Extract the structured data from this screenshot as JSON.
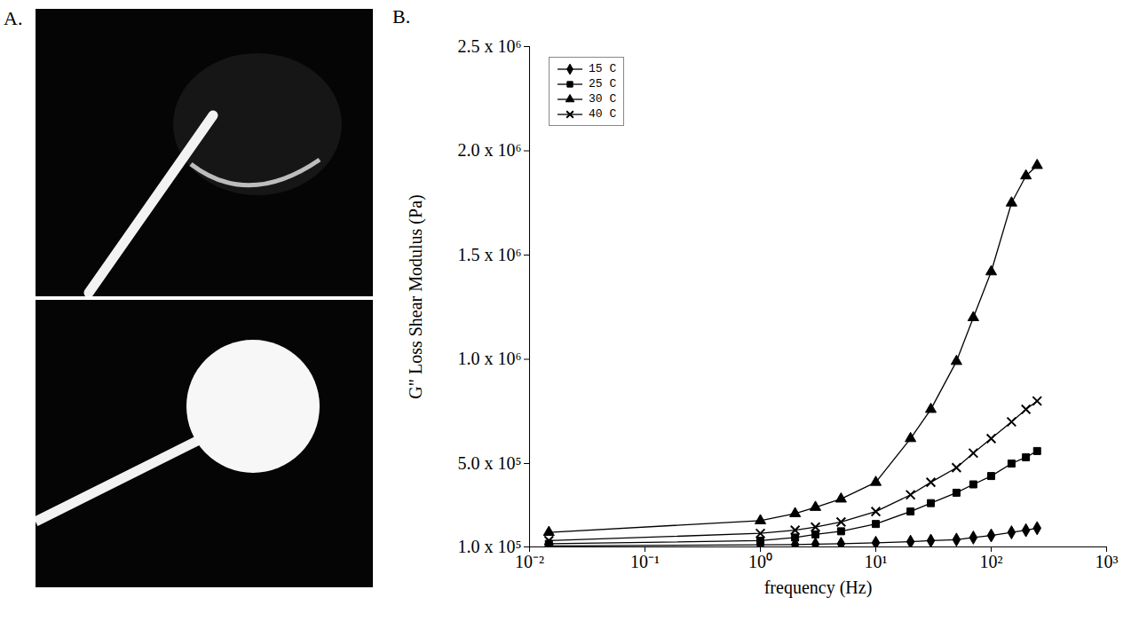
{
  "panel_labels": [
    "A.",
    "B."
  ],
  "chart_data": {
    "type": "line",
    "x_label": "frequency (Hz)",
    "y_label": "G\" Loss Shear Modulus (Pa)",
    "log": "x",
    "grid": false,
    "legend": "top-left",
    "xlim": [
      0.01,
      1000
    ],
    "xticks": [
      {
        "value": 0.01,
        "label": "10⁻²"
      },
      {
        "value": 0.1,
        "label": "10⁻¹"
      },
      {
        "value": 1,
        "label": "10⁰"
      },
      {
        "value": 10,
        "label": "10¹"
      },
      {
        "value": 100,
        "label": "10²"
      },
      {
        "value": 1000,
        "label": "10³"
      }
    ],
    "ylim": [
      100000,
      2500000
    ],
    "yticks": [
      {
        "value": 100000,
        "label": "1.0 x 10⁵"
      },
      {
        "value": 500000,
        "label": "5.0 x 10⁵"
      },
      {
        "value": 1000000,
        "label": "1.0 x 10⁶"
      },
      {
        "value": 1500000,
        "label": "1.5 x 10⁶"
      },
      {
        "value": 2000000,
        "label": "2.0 x 10⁶"
      },
      {
        "value": 2500000,
        "label": "2.5 x 10⁶"
      }
    ],
    "x": [
      0.0147,
      1,
      2,
      3,
      5,
      10,
      20,
      30,
      50,
      70,
      100,
      150,
      200,
      250
    ],
    "series": [
      {
        "name": "15 C",
        "color": "#000000",
        "marker": "diamond",
        "line_style": "solid",
        "values": [
          105000,
          110000,
          111000,
          113000,
          115000,
          120000,
          125000,
          130000,
          135000,
          145000,
          155000,
          170000,
          180000,
          190000
        ]
      },
      {
        "name": "25 C",
        "color": "#000000",
        "marker": "square",
        "line_style": "solid",
        "values": [
          115000,
          130000,
          145000,
          160000,
          175000,
          210000,
          270000,
          310000,
          360000,
          400000,
          440000,
          500000,
          530000,
          560000
        ]
      },
      {
        "name": "30 C",
        "color": "#000000",
        "marker": "triangle",
        "line_style": "solid",
        "values": [
          170000,
          226000,
          260000,
          290000,
          330000,
          410000,
          620000,
          760000,
          990000,
          1200000,
          1420000,
          1750000,
          1880000,
          1930000
        ]
      },
      {
        "name": "40 C",
        "color": "#000000",
        "marker": "times",
        "line_style": "solid",
        "values": [
          130000,
          165000,
          180000,
          195000,
          220000,
          270000,
          350000,
          410000,
          480000,
          550000,
          620000,
          700000,
          760000,
          800000
        ]
      }
    ]
  }
}
